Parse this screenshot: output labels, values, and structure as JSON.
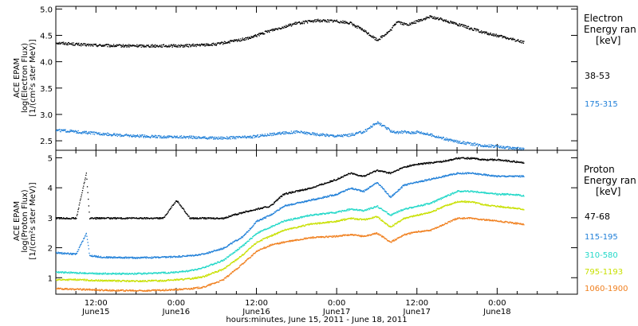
{
  "xlabel": "hours:minutes, June 15, 2011 - June 18, 2011",
  "x_ticks": [
    {
      "t": 12,
      "time": "12:00",
      "date": "June15"
    },
    {
      "t": 24,
      "time": "0:00",
      "date": "June16"
    },
    {
      "t": 36,
      "time": "12:00",
      "date": "June16"
    },
    {
      "t": 48,
      "time": "0:00",
      "date": "June17"
    },
    {
      "t": 60,
      "time": "12:00",
      "date": "June17"
    },
    {
      "t": 72,
      "time": "0:00",
      "date": "June18"
    }
  ],
  "colors": {
    "ch38_53": "#000000",
    "ch175_315": "#1f7fd8",
    "ch47_68": "#000000",
    "ch115_195": "#1f7fd8",
    "ch310_580": "#22d8c8",
    "ch795_1193": "#c8e000",
    "ch1060_1900": "#f08020"
  },
  "chart_data": [
    {
      "type": "scatter",
      "panel": "electron",
      "xlim": [
        6,
        84
      ],
      "ylim": [
        2.32,
        5.05
      ],
      "yticks": [
        "2.5",
        "3.0",
        "3.5",
        "4.0",
        "4.5",
        "5.0"
      ],
      "ylabel_lines": [
        "ACE EPAM",
        "log(Electron Flux)",
        "[1/(cm²s ster MeV)]"
      ],
      "legend_title": [
        "Electron",
        "Energy ran",
        "[keV]"
      ],
      "series": [
        {
          "name": "38-53",
          "color_key": "ch38_53",
          "t": [
            6,
            10,
            15,
            20,
            25,
            30,
            35,
            38,
            42,
            45,
            48,
            50,
            52,
            54,
            56,
            57,
            58,
            59,
            60,
            62,
            64,
            66,
            68,
            70,
            72,
            74,
            76
          ],
          "y": [
            4.37,
            4.33,
            4.31,
            4.31,
            4.31,
            4.34,
            4.46,
            4.6,
            4.74,
            4.79,
            4.78,
            4.74,
            4.6,
            4.42,
            4.6,
            4.78,
            4.72,
            4.72,
            4.78,
            4.86,
            4.8,
            4.72,
            4.64,
            4.56,
            4.5,
            4.44,
            4.38
          ]
        },
        {
          "name": "175-315",
          "color_key": "ch175_315",
          "t": [
            6,
            10,
            15,
            20,
            25,
            30,
            35,
            38,
            42,
            45,
            48,
            50,
            52,
            54,
            56,
            57,
            58,
            59,
            60,
            62,
            64,
            66,
            68,
            70,
            72,
            74,
            76
          ],
          "y": [
            2.71,
            2.67,
            2.62,
            2.59,
            2.58,
            2.56,
            2.58,
            2.63,
            2.68,
            2.63,
            2.6,
            2.62,
            2.68,
            2.86,
            2.7,
            2.66,
            2.68,
            2.66,
            2.68,
            2.62,
            2.55,
            2.49,
            2.45,
            2.42,
            2.4,
            2.37,
            2.35
          ]
        }
      ]
    },
    {
      "type": "scatter",
      "panel": "proton",
      "xlim": [
        6,
        84
      ],
      "ylim": [
        0.45,
        5.25
      ],
      "yticks": [
        "1",
        "2",
        "3",
        "4",
        "5"
      ],
      "ylabel_lines": [
        "ACE EPAM",
        "log(Proton Flux)",
        "[1/(cm²s ster MeV)]"
      ],
      "legend_title": [
        "Proton",
        "Energy ran",
        "[keV]"
      ],
      "series": [
        {
          "name": "47-68",
          "color_key": "ch47_68",
          "t": [
            6,
            9,
            10.5,
            11,
            13,
            18,
            22,
            24,
            26,
            28,
            31,
            34,
            36,
            38,
            40,
            44,
            48,
            50,
            52,
            54,
            56,
            58,
            60,
            62,
            64,
            66,
            68,
            70,
            72,
            74,
            76
          ],
          "y": [
            3.0,
            3.0,
            4.5,
            3.0,
            3.0,
            3.0,
            3.0,
            3.6,
            3.0,
            3.0,
            3.0,
            3.2,
            3.3,
            3.4,
            3.8,
            4.0,
            4.3,
            4.5,
            4.4,
            4.6,
            4.5,
            4.7,
            4.8,
            4.85,
            4.9,
            5.0,
            5.0,
            4.95,
            4.95,
            4.9,
            4.85
          ]
        },
        {
          "name": "115-195",
          "color_key": "ch115_195",
          "t": [
            6,
            9,
            10.5,
            11,
            13,
            18,
            22,
            24,
            26,
            28,
            31,
            34,
            36,
            38,
            40,
            44,
            48,
            50,
            52,
            54,
            56,
            58,
            60,
            62,
            64,
            66,
            68,
            70,
            72,
            74,
            76
          ],
          "y": [
            1.85,
            1.8,
            2.5,
            1.75,
            1.7,
            1.68,
            1.7,
            1.72,
            1.75,
            1.8,
            2.0,
            2.4,
            2.9,
            3.1,
            3.4,
            3.6,
            3.8,
            4.0,
            3.9,
            4.2,
            3.7,
            4.1,
            4.2,
            4.3,
            4.4,
            4.5,
            4.5,
            4.45,
            4.4,
            4.4,
            4.4
          ]
        },
        {
          "name": "310-580",
          "color_key": "ch310_580",
          "t": [
            6,
            9,
            10.5,
            11,
            13,
            18,
            22,
            24,
            26,
            28,
            31,
            34,
            36,
            38,
            40,
            44,
            48,
            50,
            52,
            54,
            56,
            58,
            60,
            62,
            64,
            66,
            68,
            70,
            72,
            74,
            76
          ],
          "y": [
            1.2,
            1.18,
            1.17,
            1.16,
            1.15,
            1.15,
            1.18,
            1.2,
            1.25,
            1.35,
            1.6,
            2.1,
            2.5,
            2.7,
            2.9,
            3.1,
            3.2,
            3.3,
            3.25,
            3.4,
            3.1,
            3.3,
            3.4,
            3.5,
            3.7,
            3.9,
            3.9,
            3.85,
            3.8,
            3.8,
            3.75
          ]
        },
        {
          "name": "795-1193",
          "color_key": "ch795_1193",
          "t": [
            6,
            9,
            10.5,
            11,
            13,
            18,
            22,
            24,
            26,
            28,
            31,
            34,
            36,
            38,
            40,
            44,
            48,
            50,
            52,
            54,
            56,
            58,
            60,
            62,
            64,
            66,
            68,
            70,
            72,
            74,
            76
          ],
          "y": [
            0.95,
            0.95,
            0.94,
            0.93,
            0.92,
            0.9,
            0.92,
            0.95,
            0.98,
            1.05,
            1.3,
            1.8,
            2.2,
            2.4,
            2.6,
            2.8,
            2.9,
            3.0,
            2.95,
            3.05,
            2.7,
            3.0,
            3.1,
            3.2,
            3.4,
            3.55,
            3.55,
            3.45,
            3.4,
            3.35,
            3.3
          ]
        },
        {
          "name": "1060-1900",
          "color_key": "ch1060_1900",
          "t": [
            6,
            9,
            10.5,
            11,
            13,
            18,
            22,
            24,
            26,
            28,
            31,
            34,
            36,
            38,
            40,
            44,
            48,
            50,
            52,
            54,
            56,
            58,
            60,
            62,
            64,
            66,
            68,
            70,
            72,
            74,
            76
          ],
          "y": [
            0.65,
            0.63,
            0.62,
            0.62,
            0.6,
            0.58,
            0.6,
            0.62,
            0.65,
            0.7,
            0.95,
            1.5,
            1.9,
            2.1,
            2.2,
            2.35,
            2.4,
            2.45,
            2.4,
            2.5,
            2.2,
            2.45,
            2.55,
            2.6,
            2.8,
            3.0,
            3.0,
            2.95,
            2.9,
            2.85,
            2.8
          ]
        }
      ]
    }
  ]
}
